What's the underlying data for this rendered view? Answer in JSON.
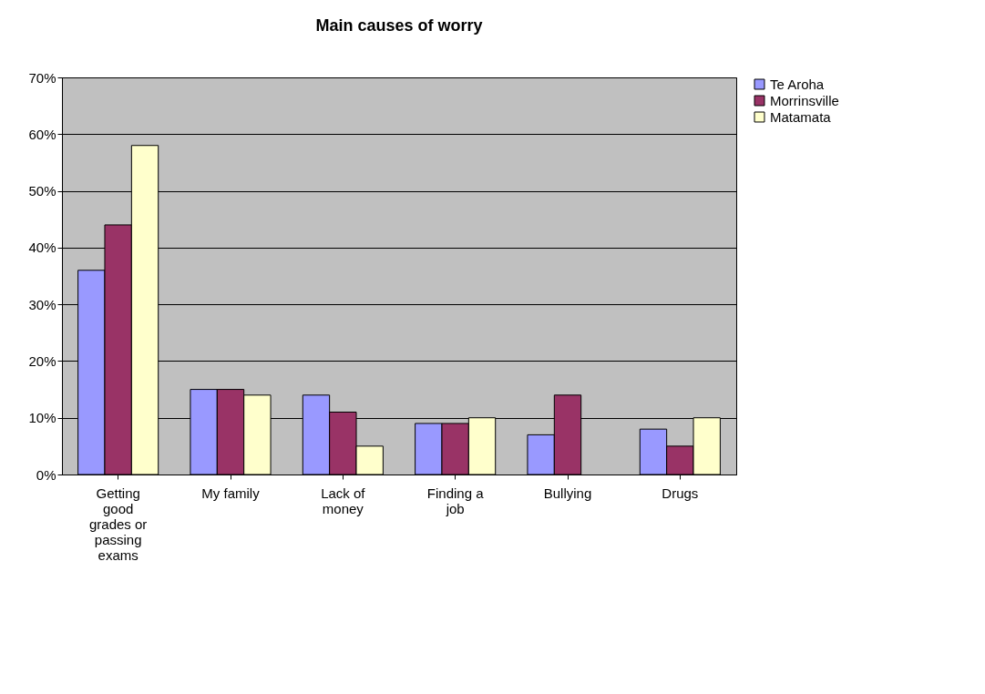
{
  "chart_data": {
    "type": "bar",
    "title": "Main causes of worry",
    "categories": [
      "Getting good grades or passing exams",
      "My family",
      "Lack of money",
      "Finding a job",
      "Bullying",
      "Drugs"
    ],
    "series": [
      {
        "name": "Te Aroha",
        "color": "#9999ff",
        "values": [
          36,
          15,
          14,
          9,
          7,
          8
        ]
      },
      {
        "name": "Morrinsville",
        "color": "#993366",
        "values": [
          44,
          15,
          11,
          9,
          14,
          5
        ]
      },
      {
        "name": "Matamata",
        "color": "#ffffcc",
        "values": [
          58,
          14,
          5,
          10,
          null,
          10
        ]
      }
    ],
    "ylim": [
      0,
      70
    ],
    "yticks": [
      {
        "value": 0,
        "label": "0%"
      },
      {
        "value": 10,
        "label": "10%"
      },
      {
        "value": 20,
        "label": "20%"
      },
      {
        "value": 30,
        "label": "30%"
      },
      {
        "value": 40,
        "label": "40%"
      },
      {
        "value": 50,
        "label": "50%"
      },
      {
        "value": 60,
        "label": "60%"
      },
      {
        "value": 70,
        "label": "70%"
      }
    ],
    "grid": "y",
    "legend": "right"
  }
}
